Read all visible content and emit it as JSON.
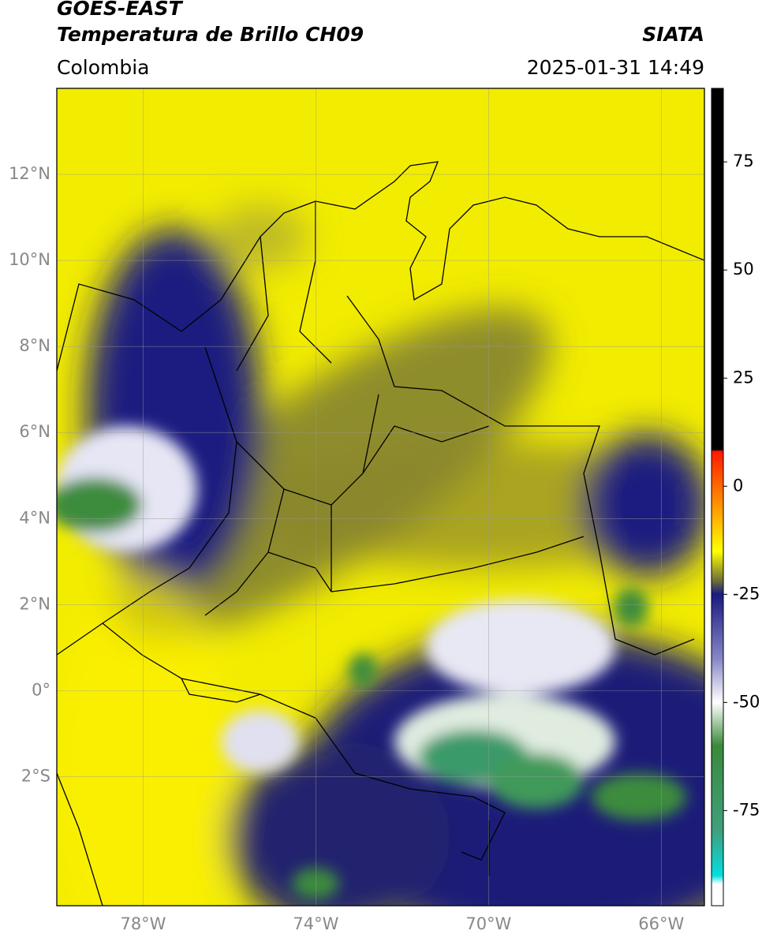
{
  "header": {
    "satellite": "GOES-EAST",
    "product": "Temperatura de Brillo CH09",
    "region": "Colombia",
    "source": "SIATA",
    "datetime": "2025-01-31 14:49"
  },
  "map": {
    "lonlim": [
      -80,
      -65
    ],
    "latlim": [
      -5,
      14
    ],
    "lat_ticks": [
      {
        "value": 12,
        "label": "12°N"
      },
      {
        "value": 10,
        "label": "10°N"
      },
      {
        "value": 8,
        "label": "8°N"
      },
      {
        "value": 6,
        "label": "6°N"
      },
      {
        "value": 4,
        "label": "4°N"
      },
      {
        "value": 2,
        "label": "2°N"
      },
      {
        "value": 0,
        "label": "0°"
      },
      {
        "value": -2,
        "label": "2°S"
      }
    ],
    "lon_ticks": [
      {
        "value": -78,
        "label": "78°W"
      },
      {
        "value": -74,
        "label": "74°W"
      },
      {
        "value": -70,
        "label": "70°W"
      },
      {
        "value": -66,
        "label": "66°W"
      }
    ],
    "grid": true
  },
  "colorbar": {
    "clim": [
      -97,
      92
    ],
    "ticks": [
      75,
      50,
      25,
      0,
      -25,
      -50,
      -75
    ],
    "stops": [
      {
        "value": 92,
        "color": "#000000"
      },
      {
        "value": 8.5,
        "color": "#000000"
      },
      {
        "value": 8,
        "color": "#ff1a00"
      },
      {
        "value": -5,
        "color": "#ff9a00"
      },
      {
        "value": -15,
        "color": "#ffff00"
      },
      {
        "value": -22,
        "color": "#6b6b3a"
      },
      {
        "value": -25,
        "color": "#1a1a80"
      },
      {
        "value": -40,
        "color": "#8888c8"
      },
      {
        "value": -50,
        "color": "#ffffff"
      },
      {
        "value": -60,
        "color": "#3a8a3a"
      },
      {
        "value": -80,
        "color": "#40a080"
      },
      {
        "value": -90,
        "color": "#00e0e0"
      },
      {
        "value": -92,
        "color": "#ffffff"
      }
    ]
  }
}
